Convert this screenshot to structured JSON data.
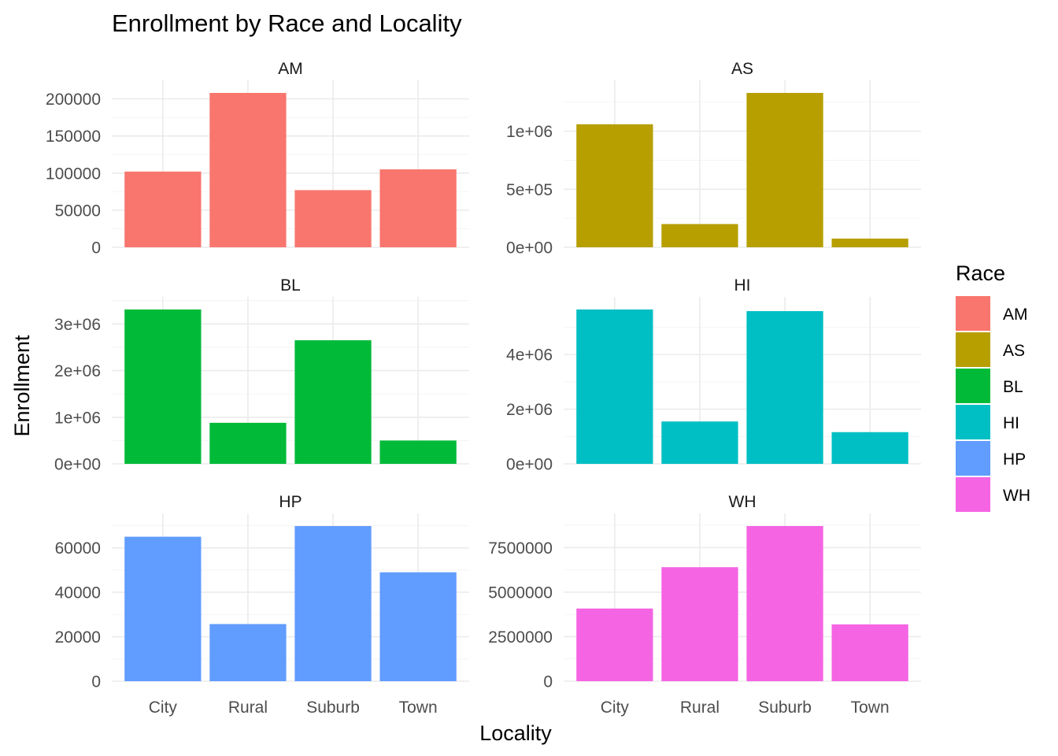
{
  "chart_data": {
    "type": "bar",
    "title": "Enrollment by Race and Locality",
    "xlabel": "Locality",
    "ylabel": "Enrollment",
    "categories": [
      "City",
      "Rural",
      "Suburb",
      "Town"
    ],
    "legend": {
      "title": "Race",
      "placement": "right",
      "items": [
        {
          "label": "AM",
          "color": "#F8766D"
        },
        {
          "label": "AS",
          "color": "#B79F00"
        },
        {
          "label": "BL",
          "color": "#00BA38"
        },
        {
          "label": "HI",
          "color": "#00BFC4"
        },
        {
          "label": "HP",
          "color": "#619CFF"
        },
        {
          "label": "WH",
          "color": "#F564E3"
        }
      ]
    },
    "grid": true,
    "facets": [
      {
        "name": "AM",
        "color": "#F8766D",
        "values": [
          102000,
          208000,
          77000,
          105000
        ],
        "ylim": [
          0,
          208000
        ],
        "ticks": [
          0,
          50000,
          100000,
          150000,
          200000
        ],
        "tick_labels": [
          "0",
          "50000",
          "100000",
          "150000",
          "200000"
        ]
      },
      {
        "name": "AS",
        "color": "#B79F00",
        "values": [
          1060000,
          200000,
          1330000,
          75000
        ],
        "ylim": [
          0,
          1330000
        ],
        "ticks": [
          0,
          500000,
          1000000
        ],
        "tick_labels": [
          "0e+00",
          "5e+05",
          "1e+06"
        ]
      },
      {
        "name": "BL",
        "color": "#00BA38",
        "values": [
          3310000,
          880000,
          2650000,
          500000
        ],
        "ylim": [
          0,
          3310000
        ],
        "ticks": [
          0,
          1000000,
          2000000,
          3000000
        ],
        "tick_labels": [
          "0e+00",
          "1e+06",
          "2e+06",
          "3e+06"
        ]
      },
      {
        "name": "HI",
        "color": "#00BFC4",
        "values": [
          5650000,
          1550000,
          5590000,
          1160000
        ],
        "ylim": [
          0,
          5650000
        ],
        "ticks": [
          0,
          2000000,
          4000000
        ],
        "tick_labels": [
          "0e+00",
          "2e+06",
          "4e+06"
        ]
      },
      {
        "name": "HP",
        "color": "#619CFF",
        "values": [
          65000,
          25700,
          69800,
          49000
        ],
        "ylim": [
          0,
          69800
        ],
        "ticks": [
          0,
          20000,
          40000,
          60000
        ],
        "tick_labels": [
          "0",
          "20000",
          "40000",
          "60000"
        ]
      },
      {
        "name": "WH",
        "color": "#F564E3",
        "values": [
          4080000,
          6400000,
          8710000,
          3190000
        ],
        "ylim": [
          0,
          8710000
        ],
        "ticks": [
          0,
          2500000,
          5000000,
          7500000
        ],
        "tick_labels": [
          "0",
          "2500000",
          "5000000",
          "7500000"
        ]
      }
    ]
  }
}
